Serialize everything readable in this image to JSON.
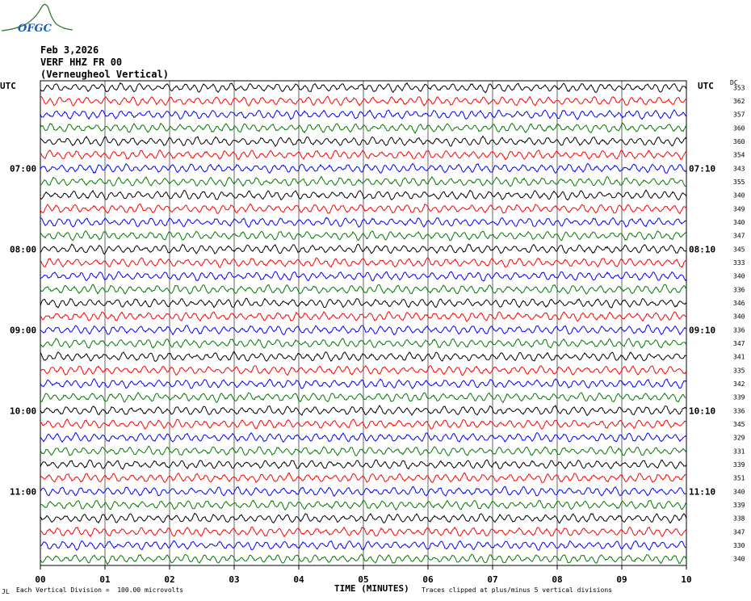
{
  "header": {
    "logo_text": "OFGC",
    "date": "Feb 3,2026",
    "station": "VERF HHZ FR 00",
    "location": "(Verneugheol Vertical)",
    "left_tz": "UTC",
    "right_tz": "UTC",
    "dc_label": "DC"
  },
  "footer": {
    "corner_mark": "JL",
    "scale_note": "Each Vertical Division =  100.00 microvolts",
    "xtitle": "TIME (MINUTES)",
    "clip_note": "Traces clipped at plus/minus 5 vertical divisions"
  },
  "chart_data": {
    "type": "line",
    "title": "",
    "xlabel": "TIME (MINUTES)",
    "ylabel": "",
    "xlim": [
      0,
      10
    ],
    "x_ticks": [
      "00",
      "01",
      "02",
      "03",
      "04",
      "05",
      "06",
      "07",
      "08",
      "09",
      "10"
    ],
    "left_time_labels": [
      {
        "row": 6,
        "label": "07:00"
      },
      {
        "row": 12,
        "label": "08:00"
      },
      {
        "row": 18,
        "label": "09:00"
      },
      {
        "row": 24,
        "label": "10:00"
      },
      {
        "row": 30,
        "label": "11:00"
      }
    ],
    "right_time_labels": [
      {
        "row": 6,
        "label": "07:10"
      },
      {
        "row": 12,
        "label": "08:10"
      },
      {
        "row": 18,
        "label": "09:10"
      },
      {
        "row": 24,
        "label": "10:10"
      },
      {
        "row": 30,
        "label": "11:10"
      }
    ],
    "trace_colors": [
      "#000000",
      "#ff0000",
      "#0000ff",
      "#007a00"
    ],
    "dc_offsets": [
      353,
      362,
      357,
      360,
      360,
      354,
      343,
      355,
      340,
      349,
      340,
      347,
      345,
      333,
      340,
      336,
      346,
      340,
      336,
      347,
      341,
      335,
      342,
      339,
      336,
      345,
      329,
      331,
      339,
      351,
      340,
      339,
      338,
      347,
      330,
      340
    ],
    "grid": true,
    "vertical_grid_minutes": [
      0,
      1,
      2,
      3,
      4,
      5,
      6,
      7,
      8,
      9,
      10
    ]
  }
}
